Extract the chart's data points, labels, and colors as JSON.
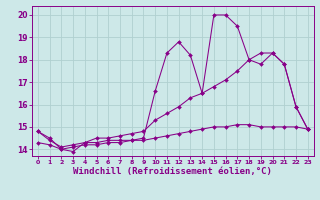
{
  "background_color": "#cde8e8",
  "grid_color": "#b0d0d0",
  "line_color": "#880088",
  "xlabel": "Windchill (Refroidissement éolien,°C)",
  "xlabel_fontsize": 6.5,
  "yticks": [
    14,
    15,
    16,
    17,
    18,
    19,
    20
  ],
  "xticks": [
    0,
    1,
    2,
    3,
    4,
    5,
    6,
    7,
    8,
    9,
    10,
    11,
    12,
    13,
    14,
    15,
    16,
    17,
    18,
    19,
    20,
    21,
    22,
    23
  ],
  "xlim": [
    -0.5,
    23.5
  ],
  "ylim": [
    13.7,
    20.4
  ],
  "line1_x": [
    0,
    1,
    2,
    3,
    4,
    5,
    6,
    7,
    8,
    9,
    10,
    11,
    12,
    13,
    14,
    15,
    16,
    17,
    18,
    19,
    20,
    21,
    22,
    23
  ],
  "line1_y": [
    14.8,
    14.5,
    14.0,
    13.9,
    14.3,
    14.3,
    14.4,
    14.4,
    14.4,
    14.5,
    16.6,
    18.3,
    18.8,
    18.2,
    16.5,
    20.0,
    20.0,
    19.5,
    18.0,
    18.3,
    18.3,
    17.8,
    15.9,
    14.9
  ],
  "line2_x": [
    0,
    1,
    2,
    3,
    4,
    5,
    6,
    7,
    8,
    9,
    10,
    11,
    12,
    13,
    14,
    15,
    16,
    17,
    18,
    19,
    20,
    21,
    22,
    23
  ],
  "line2_y": [
    14.8,
    14.4,
    14.1,
    14.2,
    14.3,
    14.5,
    14.5,
    14.6,
    14.7,
    14.8,
    15.3,
    15.6,
    15.9,
    16.3,
    16.5,
    16.8,
    17.1,
    17.5,
    18.0,
    17.8,
    18.3,
    17.8,
    15.9,
    14.9
  ],
  "line3_x": [
    0,
    1,
    2,
    3,
    4,
    5,
    6,
    7,
    8,
    9,
    10,
    11,
    12,
    13,
    14,
    15,
    16,
    17,
    18,
    19,
    20,
    21,
    22,
    23
  ],
  "line3_y": [
    14.3,
    14.2,
    14.0,
    14.1,
    14.2,
    14.2,
    14.3,
    14.3,
    14.4,
    14.4,
    14.5,
    14.6,
    14.7,
    14.8,
    14.9,
    15.0,
    15.0,
    15.1,
    15.1,
    15.0,
    15.0,
    15.0,
    15.0,
    14.9
  ]
}
